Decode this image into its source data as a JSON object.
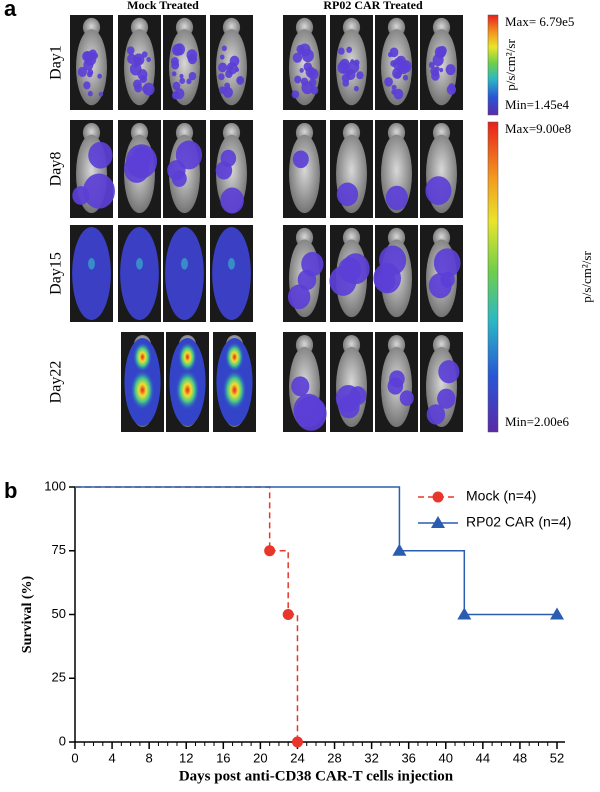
{
  "panel_a": {
    "label": "a",
    "groups": [
      "Mock Treated",
      "RP02 CAR Treated"
    ],
    "days": [
      "Day1",
      "Day8",
      "Day15",
      "Day22"
    ],
    "scales": [
      {
        "max": "Max= 6.79e5",
        "min": "Min=1.45e4",
        "unit": "p/s/cm²/sr"
      },
      {
        "max": "Max=9.00e8",
        "min": "Min=2.00e6",
        "unit": "p/s/cm²/sr"
      }
    ]
  },
  "panel_b_label": "b",
  "chart_data": {
    "type": "line",
    "x_label": "Days post anti-CD38 CAR-T cells injection",
    "y_label": "Survival (%)",
    "series": [
      {
        "name": "Mock (n=4)",
        "color": "#e8372a",
        "dashed": true,
        "marker": "circle",
        "x": [
          0,
          21,
          23,
          24
        ],
        "values": [
          100,
          75,
          50,
          0
        ]
      },
      {
        "name": "RP02 CAR (n=4)",
        "color": "#2a5db0",
        "dashed": false,
        "marker": "triangle",
        "x": [
          0,
          35,
          42,
          52
        ],
        "values": [
          100,
          75,
          50,
          50
        ]
      }
    ],
    "xlim": [
      0,
      52
    ],
    "xticks": [
      0,
      4,
      8,
      12,
      16,
      20,
      24,
      28,
      32,
      36,
      40,
      44,
      48,
      52
    ],
    "ylim": [
      0,
      100
    ],
    "yticks": [
      0,
      25,
      50,
      75,
      100
    ],
    "grid": false,
    "legend": "upper right"
  }
}
